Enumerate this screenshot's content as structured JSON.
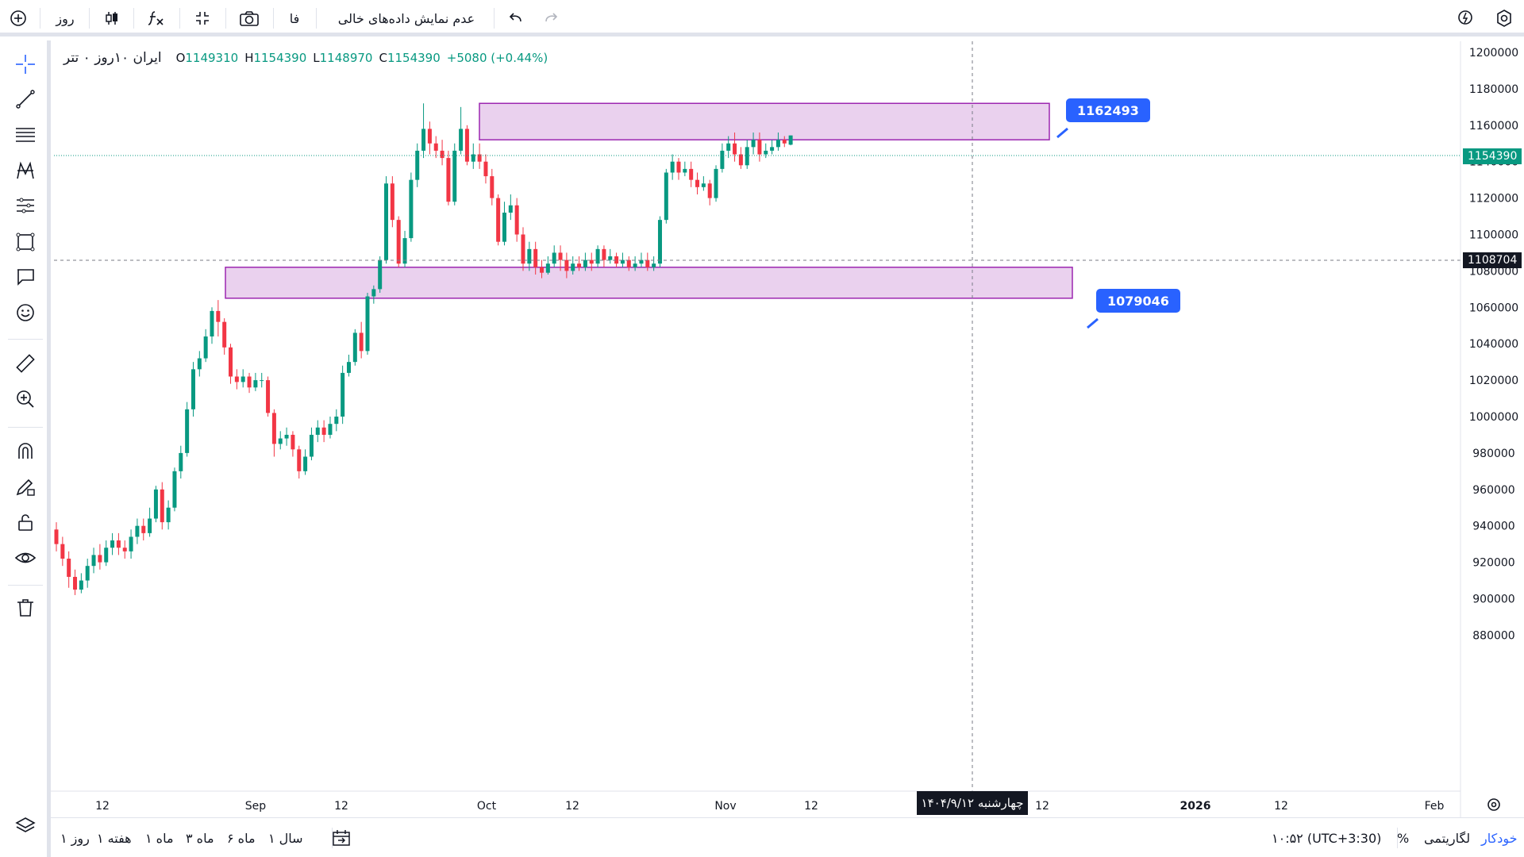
{
  "toolbar": {
    "interval_label": "روز",
    "language_label": "فا",
    "hide_empty_label": "عدم نمایش داده‌های خالی"
  },
  "legend": {
    "symbol": "ایران ۱۰روز ۰ تتر",
    "o_key": "O",
    "o_val": "1149310",
    "h_key": "H",
    "h_val": "1154390",
    "l_key": "L",
    "l_val": "1148970",
    "c_key": "C",
    "c_val": "1154390",
    "change": "+5080 (+0.44%)"
  },
  "price_axis": {
    "labels": [
      "1200000",
      "1180000",
      "1160000",
      "1140000",
      "1120000",
      "1100000",
      "1080000",
      "1060000",
      "1040000",
      "1020000",
      "1000000",
      "980000",
      "960000",
      "940000",
      "920000",
      "900000",
      "880000"
    ],
    "last_price": "1154390",
    "crosshair_price": "1108704"
  },
  "time_axis": {
    "labels": [
      "12",
      "Sep",
      "12",
      "Oct",
      "12",
      "Nov",
      "12",
      "12",
      "2026",
      "12",
      "Feb"
    ],
    "crosshair_time": "چهارشنبه ۱۴۰۴/۹/۱۲"
  },
  "annotations": {
    "upper_zone_label": "1162493",
    "lower_zone_label": "1079046"
  },
  "bottom": {
    "ranges": [
      "روز ۱",
      "هفته ۱",
      "ماه ۱",
      "ماه ۳",
      "ماه ۶",
      "سال ۱"
    ],
    "time_display": "۱۰:۵۲ (UTC+3:30)",
    "percent_label": "%",
    "log_label": "لگاریتمی",
    "auto_label": "خودکار"
  },
  "colors": {
    "up": "#089981",
    "down": "#f23645",
    "zone_fill": "#e1bee7",
    "zone_border": "#9c27b0",
    "callout": "#2962ff"
  },
  "chart_data": {
    "type": "candlestick",
    "ylim": [
      875000,
      1205000
    ],
    "x_ticks": [
      "12",
      "Sep",
      "12",
      "Oct",
      "12",
      "Nov",
      "12",
      "12",
      "2026",
      "12",
      "Feb"
    ],
    "zones": [
      {
        "top": 1172000,
        "bottom": 1152000,
        "label": "1162493"
      },
      {
        "top": 1082000,
        "bottom": 1065000,
        "label": "1079046"
      }
    ],
    "candles": [
      [
        938000,
        930000,
        942000,
        926000
      ],
      [
        930000,
        922000,
        934000,
        918000
      ],
      [
        922000,
        912000,
        926000,
        906000
      ],
      [
        912000,
        905000,
        916000,
        902000
      ],
      [
        905000,
        910000,
        914000,
        903000
      ],
      [
        910000,
        918000,
        922000,
        906000
      ],
      [
        918000,
        924000,
        928000,
        914000
      ],
      [
        924000,
        920000,
        930000,
        916000
      ],
      [
        920000,
        928000,
        932000,
        918000
      ],
      [
        928000,
        932000,
        936000,
        924000
      ],
      [
        932000,
        928000,
        936000,
        924000
      ],
      [
        928000,
        926000,
        932000,
        922000
      ],
      [
        926000,
        934000,
        938000,
        922000
      ],
      [
        934000,
        940000,
        944000,
        930000
      ],
      [
        940000,
        936000,
        944000,
        932000
      ],
      [
        936000,
        944000,
        950000,
        934000
      ],
      [
        944000,
        960000,
        962000,
        942000
      ],
      [
        960000,
        942000,
        964000,
        938000
      ],
      [
        942000,
        950000,
        954000,
        938000
      ],
      [
        950000,
        970000,
        972000,
        948000
      ],
      [
        970000,
        980000,
        984000,
        966000
      ],
      [
        980000,
        1004000,
        1008000,
        978000
      ],
      [
        1004000,
        1026000,
        1030000,
        1000000
      ],
      [
        1026000,
        1032000,
        1036000,
        1022000
      ],
      [
        1032000,
        1044000,
        1048000,
        1030000
      ],
      [
        1044000,
        1058000,
        1060000,
        1040000
      ],
      [
        1058000,
        1052000,
        1064000,
        1044000
      ],
      [
        1052000,
        1038000,
        1054000,
        1034000
      ],
      [
        1038000,
        1022000,
        1040000,
        1018000
      ],
      [
        1022000,
        1019000,
        1026000,
        1015000
      ],
      [
        1019000,
        1022000,
        1026000,
        1016000
      ],
      [
        1022000,
        1016000,
        1024000,
        1013000
      ],
      [
        1016000,
        1020000,
        1024000,
        1014000
      ],
      [
        1020000,
        1020000,
        1024000,
        1016000
      ],
      [
        1020000,
        1002000,
        1022000,
        1000000
      ],
      [
        1002000,
        985000,
        1004000,
        978000
      ],
      [
        985000,
        988000,
        992000,
        982000
      ],
      [
        988000,
        990000,
        994000,
        984000
      ],
      [
        990000,
        982000,
        992000,
        978000
      ],
      [
        982000,
        970000,
        984000,
        966000
      ],
      [
        970000,
        978000,
        982000,
        968000
      ],
      [
        978000,
        990000,
        994000,
        976000
      ],
      [
        990000,
        994000,
        998000,
        986000
      ],
      [
        994000,
        990000,
        998000,
        986000
      ],
      [
        990000,
        996000,
        1000000,
        988000
      ],
      [
        996000,
        1000000,
        1004000,
        992000
      ],
      [
        1000000,
        1024000,
        1028000,
        996000
      ],
      [
        1024000,
        1030000,
        1034000,
        1022000
      ],
      [
        1030000,
        1046000,
        1048000,
        1028000
      ],
      [
        1046000,
        1036000,
        1052000,
        1032000
      ],
      [
        1036000,
        1066000,
        1068000,
        1034000
      ],
      [
        1066000,
        1070000,
        1072000,
        1062000
      ],
      [
        1070000,
        1086000,
        1088000,
        1068000
      ],
      [
        1086000,
        1128000,
        1132000,
        1084000
      ],
      [
        1128000,
        1108000,
        1132000,
        1104000
      ],
      [
        1108000,
        1084000,
        1110000,
        1082000
      ],
      [
        1084000,
        1098000,
        1102000,
        1082000
      ],
      [
        1098000,
        1130000,
        1134000,
        1096000
      ],
      [
        1130000,
        1146000,
        1150000,
        1126000
      ],
      [
        1146000,
        1158000,
        1172000,
        1142000
      ],
      [
        1158000,
        1150000,
        1162000,
        1144000
      ],
      [
        1150000,
        1146000,
        1154000,
        1142000
      ],
      [
        1146000,
        1142000,
        1152000,
        1138000
      ],
      [
        1142000,
        1118000,
        1146000,
        1116000
      ],
      [
        1118000,
        1146000,
        1150000,
        1116000
      ],
      [
        1146000,
        1158000,
        1170000,
        1144000
      ],
      [
        1158000,
        1140000,
        1160000,
        1138000
      ],
      [
        1140000,
        1144000,
        1150000,
        1136000
      ],
      [
        1144000,
        1140000,
        1150000,
        1136000
      ],
      [
        1140000,
        1132000,
        1144000,
        1128000
      ],
      [
        1132000,
        1120000,
        1136000,
        1116000
      ],
      [
        1120000,
        1096000,
        1122000,
        1094000
      ],
      [
        1096000,
        1112000,
        1118000,
        1094000
      ],
      [
        1112000,
        1116000,
        1122000,
        1108000
      ],
      [
        1116000,
        1100000,
        1120000,
        1096000
      ],
      [
        1100000,
        1084000,
        1104000,
        1080000
      ],
      [
        1084000,
        1092000,
        1096000,
        1080000
      ],
      [
        1092000,
        1082000,
        1096000,
        1078000
      ],
      [
        1082000,
        1079000,
        1086000,
        1076000
      ],
      [
        1079000,
        1084000,
        1088000,
        1078000
      ],
      [
        1084000,
        1090000,
        1094000,
        1082000
      ],
      [
        1090000,
        1086000,
        1094000,
        1080000
      ],
      [
        1086000,
        1080000,
        1090000,
        1076000
      ],
      [
        1080000,
        1084000,
        1088000,
        1078000
      ],
      [
        1084000,
        1082000,
        1088000,
        1080000
      ],
      [
        1082000,
        1086000,
        1090000,
        1080000
      ],
      [
        1086000,
        1084000,
        1090000,
        1080000
      ],
      [
        1084000,
        1092000,
        1094000,
        1082000
      ],
      [
        1092000,
        1086000,
        1094000,
        1082000
      ],
      [
        1086000,
        1088000,
        1092000,
        1084000
      ],
      [
        1088000,
        1084000,
        1090000,
        1082000
      ],
      [
        1084000,
        1086000,
        1090000,
        1082000
      ],
      [
        1086000,
        1082000,
        1088000,
        1080000
      ],
      [
        1082000,
        1084000,
        1088000,
        1080000
      ],
      [
        1084000,
        1086000,
        1090000,
        1082000
      ],
      [
        1086000,
        1082000,
        1090000,
        1080000
      ],
      [
        1082000,
        1084000,
        1088000,
        1080000
      ],
      [
        1084000,
        1108000,
        1110000,
        1082000
      ],
      [
        1108000,
        1134000,
        1136000,
        1106000
      ],
      [
        1134000,
        1140000,
        1144000,
        1130000
      ],
      [
        1140000,
        1134000,
        1142000,
        1130000
      ],
      [
        1134000,
        1136000,
        1140000,
        1132000
      ],
      [
        1136000,
        1130000,
        1140000,
        1126000
      ],
      [
        1130000,
        1126000,
        1134000,
        1122000
      ],
      [
        1126000,
        1128000,
        1132000,
        1124000
      ],
      [
        1128000,
        1120000,
        1130000,
        1116000
      ],
      [
        1120000,
        1136000,
        1138000,
        1118000
      ],
      [
        1136000,
        1146000,
        1150000,
        1134000
      ],
      [
        1146000,
        1150000,
        1154000,
        1142000
      ],
      [
        1150000,
        1144000,
        1156000,
        1140000
      ],
      [
        1144000,
        1138000,
        1148000,
        1136000
      ],
      [
        1138000,
        1148000,
        1152000,
        1136000
      ],
      [
        1148000,
        1152000,
        1156000,
        1144000
      ],
      [
        1152000,
        1144000,
        1156000,
        1140000
      ],
      [
        1144000,
        1146000,
        1150000,
        1142000
      ],
      [
        1146000,
        1148000,
        1152000,
        1144000
      ],
      [
        1148000,
        1152000,
        1156000,
        1146000
      ],
      [
        1152000,
        1150000,
        1154000,
        1148000
      ],
      [
        1149310,
        1154390,
        1154390,
        1148970
      ]
    ]
  }
}
